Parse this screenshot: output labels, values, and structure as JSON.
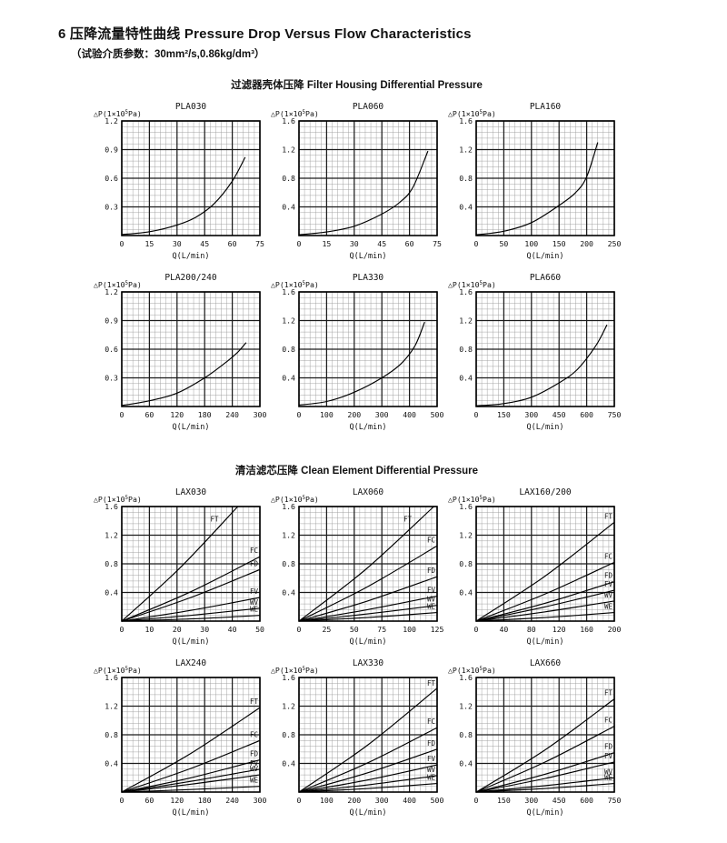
{
  "page": {
    "title_zh": "6 压降流量特性曲线",
    "title_en": "Pressure Drop Versus Flow Characteristics",
    "subtitle": "（试验介质参数：30mm²/s,0.86kg/dm³）"
  },
  "sections": [
    {
      "heading_zh": "过滤器壳体压降",
      "heading_en": "Filter Housing Differential Pressure"
    },
    {
      "heading_zh": "清洁滤芯压降",
      "heading_en": "Clean Element Differential Pressure"
    }
  ],
  "chart_data": [
    {
      "type": "line",
      "section": 0,
      "title": "PLA030",
      "xlabel": "Q(L/min)",
      "ylabel": "△P(1×10⁵Pa)",
      "xlim": [
        0,
        75
      ],
      "ylim": [
        0,
        1.2
      ],
      "xticks": [
        0,
        15,
        30,
        45,
        60,
        75
      ],
      "yticks": [
        0.3,
        0.6,
        0.9,
        1.2
      ],
      "grid": "fine",
      "series": [
        {
          "name": "",
          "x": [
            0,
            15,
            30,
            40,
            50,
            60,
            67
          ],
          "y": [
            0.01,
            0.04,
            0.11,
            0.19,
            0.33,
            0.57,
            0.82
          ]
        }
      ]
    },
    {
      "type": "line",
      "section": 0,
      "title": "PLA060",
      "xlabel": "Q(L/min)",
      "ylabel": "△P(1×10⁵Pa)",
      "xlim": [
        0,
        75
      ],
      "ylim": [
        0,
        1.6
      ],
      "xticks": [
        0,
        15,
        30,
        45,
        60,
        75
      ],
      "yticks": [
        0.4,
        0.8,
        1.2,
        1.6
      ],
      "grid": "fine",
      "series": [
        {
          "name": "",
          "x": [
            0,
            15,
            30,
            45,
            55,
            62,
            70
          ],
          "y": [
            0.01,
            0.05,
            0.13,
            0.3,
            0.47,
            0.68,
            1.18
          ]
        }
      ]
    },
    {
      "type": "line",
      "section": 0,
      "title": "PLA160",
      "xlabel": "Q(L/min)",
      "ylabel": "△P(1×10⁵Pa)",
      "xlim": [
        0,
        250
      ],
      "ylim": [
        0,
        1.6
      ],
      "xticks": [
        0,
        50,
        100,
        150,
        200,
        250
      ],
      "yticks": [
        0.4,
        0.8,
        1.2,
        1.6
      ],
      "grid": "fine",
      "series": [
        {
          "name": "",
          "x": [
            0,
            50,
            100,
            150,
            180,
            200,
            220
          ],
          "y": [
            0.01,
            0.06,
            0.18,
            0.42,
            0.6,
            0.82,
            1.3
          ]
        }
      ]
    },
    {
      "type": "line",
      "section": 0,
      "title": "PLA200/240",
      "xlabel": "Q(L/min)",
      "ylabel": "△P(1×10⁵Pa)",
      "xlim": [
        0,
        300
      ],
      "ylim": [
        0,
        1.2
      ],
      "xticks": [
        0,
        60,
        120,
        180,
        240,
        300
      ],
      "yticks": [
        0.3,
        0.6,
        0.9,
        1.2
      ],
      "grid": "fine",
      "series": [
        {
          "name": "",
          "x": [
            0,
            60,
            120,
            180,
            220,
            250,
            270
          ],
          "y": [
            0.01,
            0.06,
            0.14,
            0.3,
            0.44,
            0.56,
            0.67
          ]
        }
      ]
    },
    {
      "type": "line",
      "section": 0,
      "title": "PLA330",
      "xlabel": "Q(L/min)",
      "ylabel": "△P(1×10⁵Pa)",
      "xlim": [
        0,
        500
      ],
      "ylim": [
        0,
        1.6
      ],
      "xticks": [
        0,
        100,
        200,
        300,
        400,
        500
      ],
      "yticks": [
        0.4,
        0.8,
        1.2,
        1.6
      ],
      "grid": "fine",
      "series": [
        {
          "name": "",
          "x": [
            0,
            100,
            200,
            300,
            370,
            420,
            455
          ],
          "y": [
            0.02,
            0.07,
            0.2,
            0.4,
            0.6,
            0.85,
            1.18
          ]
        }
      ]
    },
    {
      "type": "line",
      "section": 0,
      "title": "PLA660",
      "xlabel": "Q(L/min)",
      "ylabel": "△P(1×10⁵Pa)",
      "xlim": [
        0,
        750
      ],
      "ylim": [
        0,
        1.6
      ],
      "xticks": [
        0,
        150,
        300,
        450,
        600,
        750
      ],
      "yticks": [
        0.4,
        0.8,
        1.2,
        1.6
      ],
      "grid": "fine",
      "series": [
        {
          "name": "",
          "x": [
            0,
            150,
            300,
            450,
            550,
            650,
            710
          ],
          "y": [
            0.01,
            0.04,
            0.13,
            0.33,
            0.52,
            0.85,
            1.14
          ]
        }
      ]
    },
    {
      "type": "line",
      "section": 1,
      "title": "LAX030",
      "xlabel": "Q(L/min)",
      "ylabel": "△P(1×10⁵Pa)",
      "xlim": [
        0,
        50
      ],
      "ylim": [
        0,
        1.6
      ],
      "xticks": [
        0,
        10,
        20,
        30,
        40,
        50
      ],
      "yticks": [
        0.4,
        0.8,
        1.2,
        1.6
      ],
      "grid": "fine",
      "series": [
        {
          "name": "FT",
          "x": [
            0,
            21,
            42
          ],
          "y": [
            0.0,
            0.74,
            1.6
          ]
        },
        {
          "name": "FC",
          "x": [
            0,
            25,
            50
          ],
          "y": [
            0.0,
            0.41,
            0.9
          ]
        },
        {
          "name": "FD",
          "x": [
            0,
            25,
            50
          ],
          "y": [
            0.0,
            0.33,
            0.72
          ]
        },
        {
          "name": "FV",
          "x": [
            0,
            25,
            50
          ],
          "y": [
            0.0,
            0.15,
            0.33
          ]
        },
        {
          "name": "WV",
          "x": [
            0,
            25,
            50
          ],
          "y": [
            0.0,
            0.08,
            0.18
          ]
        },
        {
          "name": "WE",
          "x": [
            0,
            25,
            50
          ],
          "y": [
            0.0,
            0.03,
            0.08
          ]
        }
      ]
    },
    {
      "type": "line",
      "section": 1,
      "title": "LAX060",
      "xlabel": "Q(L/min)",
      "ylabel": "△P(1×10⁵Pa)",
      "xlim": [
        0,
        125
      ],
      "ylim": [
        0,
        1.6
      ],
      "xticks": [
        0,
        25,
        50,
        75,
        100,
        125
      ],
      "yticks": [
        0.4,
        0.8,
        1.2,
        1.6
      ],
      "grid": "fine",
      "series": [
        {
          "name": "FT",
          "x": [
            0,
            61,
            122
          ],
          "y": [
            0.0,
            0.73,
            1.6
          ]
        },
        {
          "name": "FC",
          "x": [
            0,
            62,
            125
          ],
          "y": [
            0.0,
            0.48,
            1.05
          ]
        },
        {
          "name": "FD",
          "x": [
            0,
            62,
            125
          ],
          "y": [
            0.0,
            0.28,
            0.62
          ]
        },
        {
          "name": "FV",
          "x": [
            0,
            62,
            125
          ],
          "y": [
            0.0,
            0.16,
            0.35
          ]
        },
        {
          "name": "WV",
          "x": [
            0,
            62,
            125
          ],
          "y": [
            0.0,
            0.1,
            0.22
          ]
        },
        {
          "name": "WE",
          "x": [
            0,
            62,
            125
          ],
          "y": [
            0.0,
            0.05,
            0.12
          ]
        }
      ]
    },
    {
      "type": "line",
      "section": 1,
      "title": "LAX160/200",
      "xlabel": "Q(L/min)",
      "ylabel": "△P(1×10⁵Pa)",
      "xlim": [
        0,
        200
      ],
      "ylim": [
        0,
        1.6
      ],
      "xticks": [
        0,
        40,
        80,
        120,
        160,
        200
      ],
      "yticks": [
        0.4,
        0.8,
        1.2,
        1.6
      ],
      "grid": "fine",
      "series": [
        {
          "name": "FT",
          "x": [
            0,
            100,
            200
          ],
          "y": [
            0.0,
            0.63,
            1.38
          ]
        },
        {
          "name": "FC",
          "x": [
            0,
            100,
            200
          ],
          "y": [
            0.0,
            0.38,
            0.82
          ]
        },
        {
          "name": "FD",
          "x": [
            0,
            100,
            200
          ],
          "y": [
            0.0,
            0.25,
            0.55
          ]
        },
        {
          "name": "FV",
          "x": [
            0,
            100,
            200
          ],
          "y": [
            0.0,
            0.2,
            0.43
          ]
        },
        {
          "name": "WV",
          "x": [
            0,
            100,
            200
          ],
          "y": [
            0.0,
            0.13,
            0.28
          ]
        },
        {
          "name": "WE",
          "x": [
            0,
            100,
            200
          ],
          "y": [
            0.0,
            0.05,
            0.12
          ]
        }
      ]
    },
    {
      "type": "line",
      "section": 1,
      "title": "LAX240",
      "xlabel": "Q(L/min)",
      "ylabel": "△P(1×10⁵Pa)",
      "xlim": [
        0,
        300
      ],
      "ylim": [
        0,
        1.6
      ],
      "xticks": [
        0,
        60,
        120,
        180,
        240,
        300
      ],
      "yticks": [
        0.4,
        0.8,
        1.2,
        1.6
      ],
      "grid": "fine",
      "series": [
        {
          "name": "FT",
          "x": [
            0,
            150,
            300
          ],
          "y": [
            0.0,
            0.54,
            1.18
          ]
        },
        {
          "name": "FC",
          "x": [
            0,
            150,
            300
          ],
          "y": [
            0.0,
            0.33,
            0.72
          ]
        },
        {
          "name": "FD",
          "x": [
            0,
            150,
            300
          ],
          "y": [
            0.0,
            0.2,
            0.45
          ]
        },
        {
          "name": "FV",
          "x": [
            0,
            150,
            300
          ],
          "y": [
            0.0,
            0.15,
            0.32
          ]
        },
        {
          "name": "WV",
          "x": [
            0,
            150,
            300
          ],
          "y": [
            0.0,
            0.11,
            0.24
          ]
        },
        {
          "name": "WE",
          "x": [
            0,
            150,
            300
          ],
          "y": [
            0.0,
            0.035,
            0.08
          ]
        }
      ]
    },
    {
      "type": "line",
      "section": 1,
      "title": "LAX330",
      "xlabel": "Q(L/min)",
      "ylabel": "△P(1×10⁵Pa)",
      "xlim": [
        0,
        500
      ],
      "ylim": [
        0,
        1.6
      ],
      "xticks": [
        0,
        100,
        200,
        300,
        400,
        500
      ],
      "yticks": [
        0.4,
        0.8,
        1.2,
        1.6
      ],
      "grid": "fine",
      "series": [
        {
          "name": "FT",
          "x": [
            0,
            250,
            500
          ],
          "y": [
            0.0,
            0.66,
            1.45
          ]
        },
        {
          "name": "FC",
          "x": [
            0,
            250,
            500
          ],
          "y": [
            0.0,
            0.41,
            0.9
          ]
        },
        {
          "name": "FD",
          "x": [
            0,
            250,
            500
          ],
          "y": [
            0.0,
            0.27,
            0.6
          ]
        },
        {
          "name": "FV",
          "x": [
            0,
            250,
            500
          ],
          "y": [
            0.0,
            0.17,
            0.38
          ]
        },
        {
          "name": "WV",
          "x": [
            0,
            250,
            500
          ],
          "y": [
            0.0,
            0.1,
            0.23
          ]
        },
        {
          "name": "WE",
          "x": [
            0,
            250,
            500
          ],
          "y": [
            0.0,
            0.05,
            0.12
          ]
        }
      ]
    },
    {
      "type": "line",
      "section": 1,
      "title": "LAX660",
      "xlabel": "Q(L/min)",
      "ylabel": "△P(1×10⁵Pa)",
      "xlim": [
        0,
        750
      ],
      "ylim": [
        0,
        1.6
      ],
      "xticks": [
        0,
        150,
        300,
        450,
        600,
        750
      ],
      "yticks": [
        0.4,
        0.8,
        1.2,
        1.6
      ],
      "grid": "fine",
      "series": [
        {
          "name": "FT",
          "x": [
            0,
            375,
            750
          ],
          "y": [
            0.0,
            0.59,
            1.3
          ]
        },
        {
          "name": "FC",
          "x": [
            0,
            375,
            750
          ],
          "y": [
            0.0,
            0.42,
            0.92
          ]
        },
        {
          "name": "FD",
          "x": [
            0,
            375,
            750
          ],
          "y": [
            0.0,
            0.25,
            0.55
          ]
        },
        {
          "name": "FV",
          "x": [
            0,
            375,
            750
          ],
          "y": [
            0.0,
            0.19,
            0.42
          ]
        },
        {
          "name": "WV",
          "x": [
            0,
            375,
            750
          ],
          "y": [
            0.0,
            0.09,
            0.2
          ]
        },
        {
          "name": "WE",
          "x": [
            0,
            375,
            750
          ],
          "y": [
            0.0,
            0.05,
            0.12
          ]
        }
      ]
    }
  ]
}
